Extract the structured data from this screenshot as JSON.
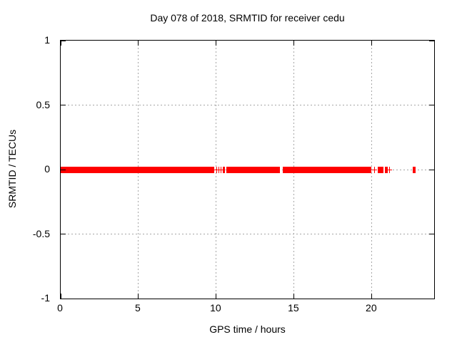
{
  "figure": {
    "title": "Day 078 of 2018, SRMTID for receiver cedu",
    "xlabel": "GPS time / hours",
    "ylabel": "SRMTID / TECUs"
  },
  "colors": {
    "background": "#ffffff",
    "axis": "#000000",
    "grid": "#a6a6a6",
    "data": "#ff0000",
    "text": "#000000"
  },
  "chart_data": {
    "type": "scatter",
    "title": "Day 078 of 2018, SRMTID for receiver cedu",
    "xlabel": "GPS time / hours",
    "ylabel": "SRMTID / TECUs",
    "xlim": [
      0,
      24
    ],
    "ylim": [
      -1,
      1
    ],
    "xticks": [
      {
        "value": 0,
        "label": "0"
      },
      {
        "value": 5,
        "label": "5"
      },
      {
        "value": 10,
        "label": "10"
      },
      {
        "value": 15,
        "label": "15"
      },
      {
        "value": 20,
        "label": "20"
      }
    ],
    "yticks": [
      {
        "value": 1,
        "label": "1"
      },
      {
        "value": 0.5,
        "label": "0.5"
      },
      {
        "value": 0,
        "label": "0"
      },
      {
        "value": -0.5,
        "label": "-0.5"
      },
      {
        "value": -1,
        "label": "-1"
      }
    ],
    "grid": {
      "shown": true,
      "style": "dotted"
    },
    "legend": "none",
    "series": [
      {
        "name": "SRMTID",
        "color": "#ff0000",
        "marker": "plus",
        "y_value": 0,
        "solid_segments_hours": [
          [
            0.0,
            9.87
          ],
          [
            10.42,
            10.56
          ],
          [
            10.66,
            14.07
          ],
          [
            14.28,
            19.97
          ],
          [
            20.38,
            20.54
          ],
          [
            20.58,
            20.72
          ],
          [
            20.83,
            21.03
          ],
          [
            22.63,
            22.82
          ]
        ],
        "isolated_points_hours": [
          10.02,
          10.17,
          10.31,
          20.16,
          21.12
        ]
      }
    ]
  }
}
